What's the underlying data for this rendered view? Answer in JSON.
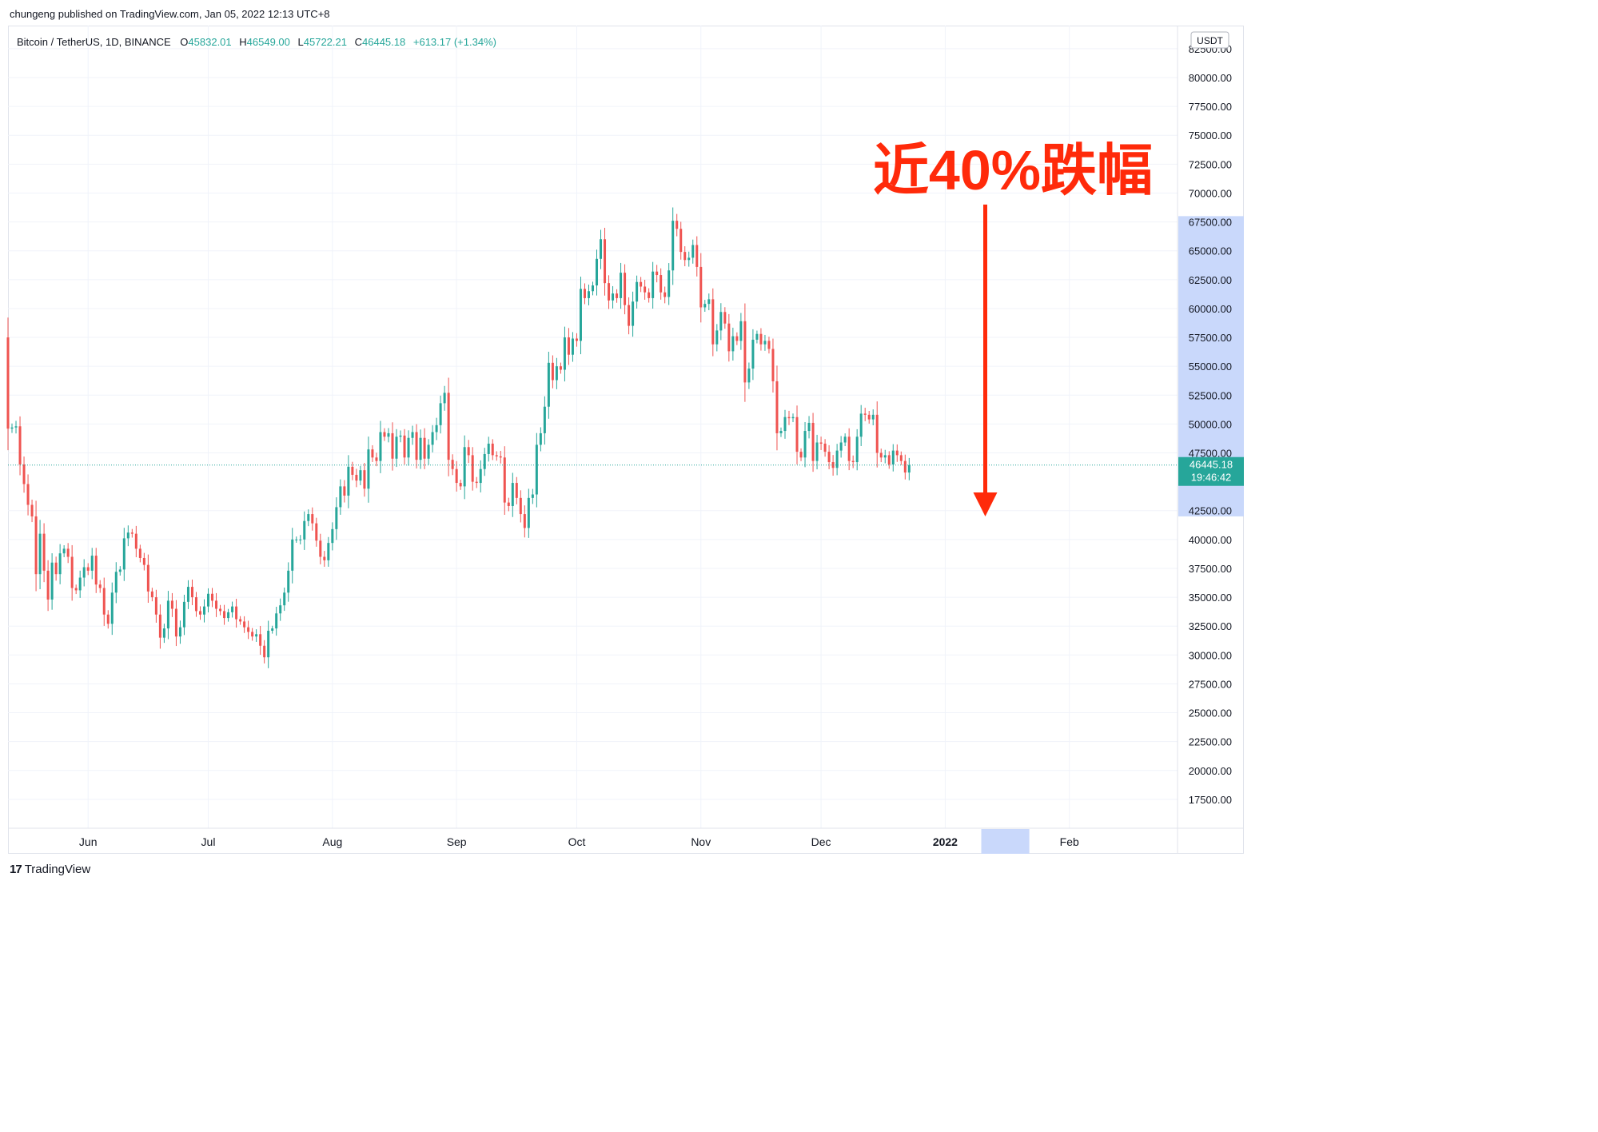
{
  "publisher_line": "chungeng published on TradingView.com, Jan 05, 2022 12:13 UTC+8",
  "footer": {
    "logo_mark": "17",
    "brand": "TradingView"
  },
  "colors": {
    "up": "#26a69a",
    "down": "#ef5350",
    "annotation": "#ff2a0a",
    "price_range_highlight": "#c9d8fb",
    "grid": "#f0f3fa"
  },
  "chart_data": {
    "type": "candlestick",
    "symbol_line": {
      "name": "Bitcoin / TetherUS, 1D, BINANCE",
      "open_label": "O",
      "open": "45832.01",
      "high_label": "H",
      "high": "46549.00",
      "low_label": "L",
      "low": "45722.21",
      "close_label": "C",
      "close": "46445.18",
      "change": "+613.17 (+1.34%)"
    },
    "currency": "USDT",
    "y_ticks": [
      17500,
      20000,
      22500,
      25000,
      27500,
      30000,
      32500,
      35000,
      37500,
      40000,
      42500,
      47500,
      50000,
      52500,
      55000,
      57500,
      60000,
      62500,
      65000,
      67500,
      70000,
      72500,
      75000,
      77500,
      80000,
      82500
    ],
    "x_ticks": [
      "Jun",
      "Jul",
      "Aug",
      "Sep",
      "Oct",
      "Nov",
      "Dec",
      "2022",
      "Feb"
    ],
    "x_tick_dates": [
      "2021-06-01",
      "2021-07-01",
      "2021-08-01",
      "2021-09-01",
      "2021-10-01",
      "2021-11-01",
      "2021-12-01",
      "2022-01-01",
      "2022-02-01"
    ],
    "x_range": [
      "2021-05-12",
      "2022-02-28"
    ],
    "ylim": [
      15000,
      84500
    ],
    "last_price": {
      "value": "46445.18",
      "countdown": "19:46:42"
    },
    "highlight_range": {
      "from": 42000,
      "to": 68000
    },
    "highlight_x_range": [
      "2022-01-10",
      "2022-01-22"
    ],
    "annotation": {
      "text": "近40%跌幅",
      "arrow_from": 69000,
      "arrow_to": 42000,
      "arrow_date": "2022-01-11"
    },
    "start_date": "2021-05-12",
    "closes": [
      49600,
      49700,
      49800,
      46500,
      44800,
      43000,
      42000,
      37000,
      40500,
      37300,
      34800,
      38000,
      37000,
      38800,
      39200,
      38500,
      35800,
      35600,
      36700,
      37600,
      37300,
      38600,
      36100,
      35800,
      33500,
      32700,
      35400,
      37200,
      37400,
      40100,
      40600,
      40500,
      39200,
      38400,
      37800,
      35500,
      35000,
      33500,
      31500,
      32300,
      34700,
      34000,
      31600,
      32400,
      34600,
      35900,
      35000,
      33800,
      33500,
      34200,
      35300,
      34700,
      34000,
      33800,
      33200,
      33700,
      34200,
      33100,
      32900,
      32400,
      32000,
      31600,
      31800,
      30800,
      29800,
      32100,
      32300,
      33600,
      34300,
      35400,
      37300,
      40000,
      40000,
      40000,
      41600,
      42200,
      41400,
      39900,
      38500,
      38200,
      39700,
      40900,
      42800,
      44600,
      43800,
      46300,
      45600,
      45100,
      46000,
      44400,
      47800,
      47100,
      46800,
      49300,
      48900,
      49200,
      47000,
      48900,
      49000,
      47100,
      48800,
      49300,
      46900,
      48800,
      47000,
      48200,
      49300,
      49900,
      51800,
      52700,
      46900,
      46100,
      44900,
      44600,
      48000,
      47300,
      45000,
      44900,
      46100,
      47400,
      48300,
      47300,
      47200,
      47100,
      43200,
      42900,
      44900,
      43600,
      42200,
      41000,
      43600,
      43900,
      48200,
      49200,
      51500,
      55300,
      53800,
      55000,
      54700,
      57500,
      56000,
      57400,
      57200,
      61700,
      60900,
      61500,
      62000,
      64300,
      66000,
      62200,
      60700,
      61300,
      60900,
      63100,
      60300,
      58500,
      60600,
      62300,
      61900,
      61400,
      60900,
      63200,
      62900,
      61400,
      61000,
      63300,
      67600,
      66900,
      64900,
      64200,
      64400,
      65500,
      63600,
      60100,
      60400,
      60800,
      56900,
      58100,
      59700,
      58700,
      56300,
      57600,
      57200,
      58900,
      53600,
      54800,
      57300,
      57800,
      56900,
      57200,
      56500,
      53700,
      49200,
      49400,
      50600,
      50500,
      50600,
      47600,
      47100,
      49400,
      50100,
      46800,
      48400,
      48300,
      47600,
      46700,
      46200,
      47700,
      48400,
      48900,
      46800,
      46700,
      48900,
      50900,
      50800,
      50400,
      50800,
      47500,
      47100,
      47300,
      46500,
      47700,
      47300,
      46800,
      45800,
      46445
    ]
  }
}
